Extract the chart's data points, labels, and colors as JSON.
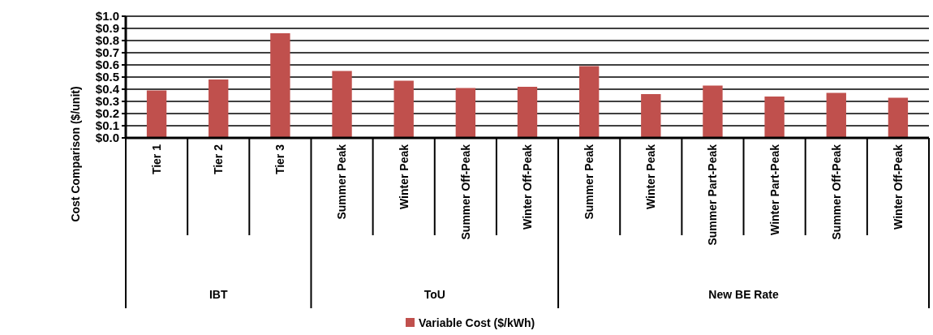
{
  "chart_data": {
    "type": "bar",
    "ylabel": "Cost Comparison ($/unit)",
    "categories": [
      "Tier 1",
      "Tier 2",
      "Tier 3",
      "Summer Peak",
      "Winter Peak",
      "Summer Off-Peak",
      "Winter Off-Peak",
      "Summer Peak",
      "Winter Peak",
      "Summer Part-Peak",
      "Winter Part-Peak",
      "Summer Off-Peak",
      "Winter Off-Peak"
    ],
    "series": [
      {
        "name": "Variable Cost ($/kWh)",
        "color": "#c0504d",
        "values": [
          0.39,
          0.48,
          0.86,
          0.55,
          0.47,
          0.41,
          0.42,
          0.59,
          0.36,
          0.43,
          0.34,
          0.37,
          0.33
        ]
      }
    ],
    "annotations": [
      "IBT",
      "ToU",
      "New BE Rate"
    ],
    "ylim": [
      0,
      1.0
    ],
    "yticks": [
      {
        "value": 0,
        "label": "$0.0"
      },
      {
        "value": 0.1,
        "label": "$0.1"
      },
      {
        "value": 0.2,
        "label": "$0.2"
      },
      {
        "value": 0.3,
        "label": "$0.3"
      },
      {
        "value": 0.4,
        "label": "$0.4"
      },
      {
        "value": 0.5,
        "label": "$0.5"
      },
      {
        "value": 0.6,
        "label": "$0.6"
      },
      {
        "value": 0.7,
        "label": "$0.7"
      },
      {
        "value": 0.8,
        "label": "$0.8"
      },
      {
        "value": 0.9,
        "label": "$0.9"
      },
      {
        "value": 1.0,
        "label": "$1.0"
      }
    ],
    "grid": "y",
    "legend": "bottom"
  }
}
